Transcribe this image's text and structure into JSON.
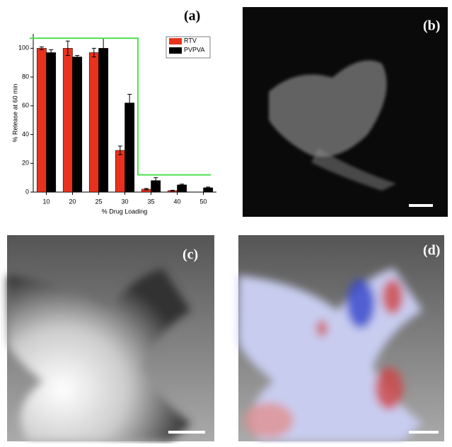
{
  "chart_data": {
    "type": "bar",
    "panel_label": "(a)",
    "x_label": "% Drug Loading",
    "y_label": "% Release at 60 min",
    "categories": [
      "10",
      "20",
      "25",
      "30",
      "35",
      "40",
      "50"
    ],
    "series": [
      {
        "name": "RTV",
        "color": "#e8321e",
        "values": [
          100,
          100,
          97,
          29,
          2,
          1,
          null
        ],
        "errors": [
          1,
          5,
          3,
          3,
          0.5,
          0.3,
          null
        ]
      },
      {
        "name": "PVPVA",
        "color": "#000000",
        "values": [
          97,
          94,
          100,
          62,
          8,
          5,
          3
        ],
        "errors": [
          2,
          1,
          7,
          6,
          2,
          0.5,
          0.5
        ]
      }
    ],
    "threshold": {
      "color": "#4fe04f",
      "values": [
        107,
        107,
        107,
        107,
        12,
        12,
        12
      ]
    },
    "ylim": [
      0,
      110
    ],
    "yticks": [
      0,
      20,
      40,
      60,
      80,
      100
    ],
    "legend": "top-right"
  },
  "panels": [
    "(b)",
    "(c)",
    "(d)"
  ]
}
